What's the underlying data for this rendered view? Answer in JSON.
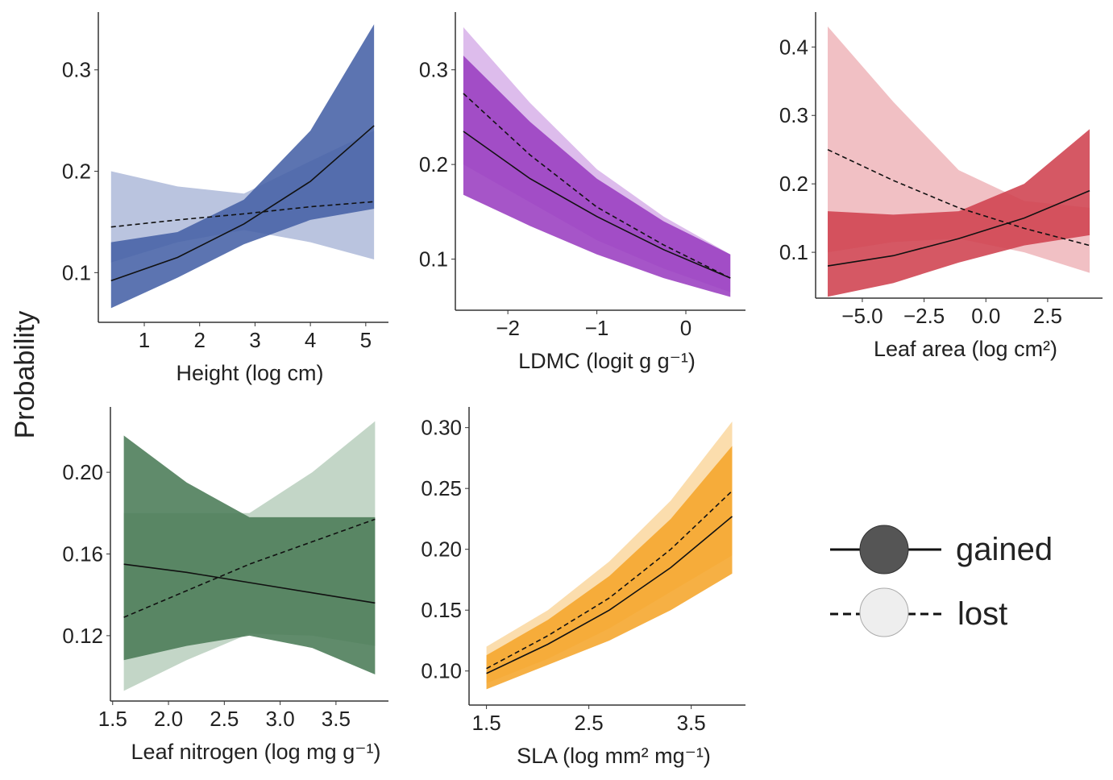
{
  "y_label": "Probability",
  "chart_data": [
    {
      "type": "line",
      "x_label": "Height (log cm)",
      "x": [
        0.4,
        1.6,
        2.8,
        4.0,
        5.15
      ],
      "xlim": [
        0.17,
        5.41
      ],
      "ylim": [
        0.051,
        0.357
      ],
      "xticks": [
        1,
        2,
        3,
        4,
        5
      ],
      "yticks": [
        0.1,
        0.2,
        0.3
      ],
      "series": [
        {
          "name": "gained",
          "color": "#4561a6",
          "line_style": "solid",
          "values": [
            0.092,
            0.115,
            0.148,
            0.19,
            0.245
          ],
          "lower": [
            0.065,
            0.095,
            0.128,
            0.152,
            0.163
          ],
          "upper": [
            0.13,
            0.14,
            0.172,
            0.24,
            0.345
          ]
        },
        {
          "name": "lost",
          "color": "#b3bedb",
          "line_style": "dashed",
          "values": [
            0.145,
            0.152,
            0.158,
            0.165,
            0.17
          ],
          "lower": [
            0.11,
            0.13,
            0.142,
            0.13,
            0.113
          ],
          "upper": [
            0.2,
            0.185,
            0.178,
            0.21,
            0.24
          ]
        }
      ]
    },
    {
      "type": "line",
      "x_label": "LDMC (logit g g⁻¹)",
      "x": [
        -2.5,
        -1.75,
        -1,
        -0.25,
        0.5
      ],
      "xlim": [
        -2.59,
        0.67
      ],
      "ylim": [
        0.046,
        0.361
      ],
      "xticks": [
        {
          "value": -2,
          "label": "−2"
        },
        {
          "value": -1,
          "label": "−1"
        },
        0
      ],
      "yticks": [
        0.1,
        0.2,
        0.3
      ],
      "series": [
        {
          "name": "gained",
          "color": "#9a3ec0",
          "line_style": "solid",
          "values": [
            0.235,
            0.185,
            0.145,
            0.11,
            0.08
          ],
          "lower": [
            0.168,
            0.135,
            0.105,
            0.08,
            0.06
          ],
          "upper": [
            0.315,
            0.245,
            0.185,
            0.14,
            0.105
          ]
        },
        {
          "name": "lost",
          "color": "#d9b5ea",
          "line_style": "dashed",
          "values": [
            0.275,
            0.21,
            0.155,
            0.115,
            0.08
          ],
          "lower": [
            0.2,
            0.16,
            0.12,
            0.09,
            0.065
          ],
          "upper": [
            0.345,
            0.265,
            0.195,
            0.145,
            0.105
          ]
        }
      ]
    },
    {
      "type": "line",
      "x_label": "Leaf area (log cm²)",
      "x": [
        -6.4,
        -3.75,
        -1.1,
        1.55,
        4.2
      ],
      "xlim": [
        -6.89,
        4.72
      ],
      "ylim": [
        0.033,
        0.451
      ],
      "xticks": [
        {
          "value": -5,
          "label": "−5.0"
        },
        {
          "value": -2.5,
          "label": "−2.5"
        },
        {
          "value": 0,
          "label": "0.0"
        },
        2.5
      ],
      "yticks": [
        0.1,
        0.2,
        0.3,
        0.4
      ],
      "series": [
        {
          "name": "gained",
          "color": "#cf414f",
          "line_style": "solid",
          "values": [
            0.08,
            0.095,
            0.12,
            0.15,
            0.19
          ],
          "lower": [
            0.035,
            0.055,
            0.085,
            0.11,
            0.125
          ],
          "upper": [
            0.16,
            0.155,
            0.16,
            0.2,
            0.28
          ]
        },
        {
          "name": "lost",
          "color": "#f0b9be",
          "line_style": "dashed",
          "values": [
            0.25,
            0.205,
            0.165,
            0.135,
            0.11
          ],
          "lower": [
            0.1,
            0.115,
            0.12,
            0.1,
            0.07
          ],
          "upper": [
            0.43,
            0.32,
            0.22,
            0.175,
            0.165
          ]
        }
      ]
    },
    {
      "type": "line",
      "x_label": "Leaf nitrogen (log mg g⁻¹)",
      "x": [
        1.6,
        2.1625,
        2.725,
        3.2875,
        3.85
      ],
      "xlim": [
        1.48,
        3.97
      ],
      "ylim": [
        0.088,
        0.232
      ],
      "xticks": [
        1.5,
        {
          "value": 2,
          "label": "2.0"
        },
        2.5,
        {
          "value": 3,
          "label": "3.0"
        },
        3.5
      ],
      "yticks": [
        0.12,
        0.16,
        {
          "value": 0.2,
          "label": "0.20"
        }
      ],
      "series": [
        {
          "name": "gained",
          "color": "#4a7b57",
          "line_style": "solid",
          "values": [
            0.155,
            0.151,
            0.146,
            0.141,
            0.136
          ],
          "lower": [
            0.108,
            0.115,
            0.12,
            0.114,
            0.101
          ],
          "upper": [
            0.218,
            0.195,
            0.178,
            0.178,
            0.178
          ]
        },
        {
          "name": "lost",
          "color": "#bcd2c1",
          "line_style": "dashed",
          "values": [
            0.129,
            0.142,
            0.155,
            0.166,
            0.177
          ],
          "lower": [
            0.093,
            0.108,
            0.121,
            0.12,
            0.115
          ],
          "upper": [
            0.18,
            0.18,
            0.18,
            0.2,
            0.225
          ]
        }
      ]
    },
    {
      "type": "line",
      "x_label": "SLA (log mm² mg⁻¹)",
      "x": [
        1.5,
        2.1,
        2.7,
        3.3,
        3.9
      ],
      "xlim": [
        1.33,
        4.03
      ],
      "ylim": [
        0.072,
        0.317
      ],
      "xticks": [
        1.5,
        2.5,
        3.5
      ],
      "yticks": [
        {
          "value": 0.1,
          "label": "0.10"
        },
        0.15,
        {
          "value": 0.2,
          "label": "0.20"
        },
        0.25,
        {
          "value": 0.3,
          "label": "0.30"
        }
      ],
      "series": [
        {
          "name": "gained",
          "color": "#f5a52a",
          "line_style": "solid",
          "values": [
            0.098,
            0.122,
            0.15,
            0.185,
            0.227
          ],
          "lower": [
            0.085,
            0.105,
            0.125,
            0.15,
            0.18
          ],
          "upper": [
            0.113,
            0.142,
            0.178,
            0.225,
            0.285
          ]
        },
        {
          "name": "lost",
          "color": "#fbd9a4",
          "line_style": "dashed",
          "values": [
            0.102,
            0.129,
            0.16,
            0.2,
            0.248
          ],
          "lower": [
            0.09,
            0.11,
            0.135,
            0.165,
            0.195
          ],
          "upper": [
            0.12,
            0.15,
            0.19,
            0.24,
            0.305
          ]
        }
      ]
    }
  ]
}
